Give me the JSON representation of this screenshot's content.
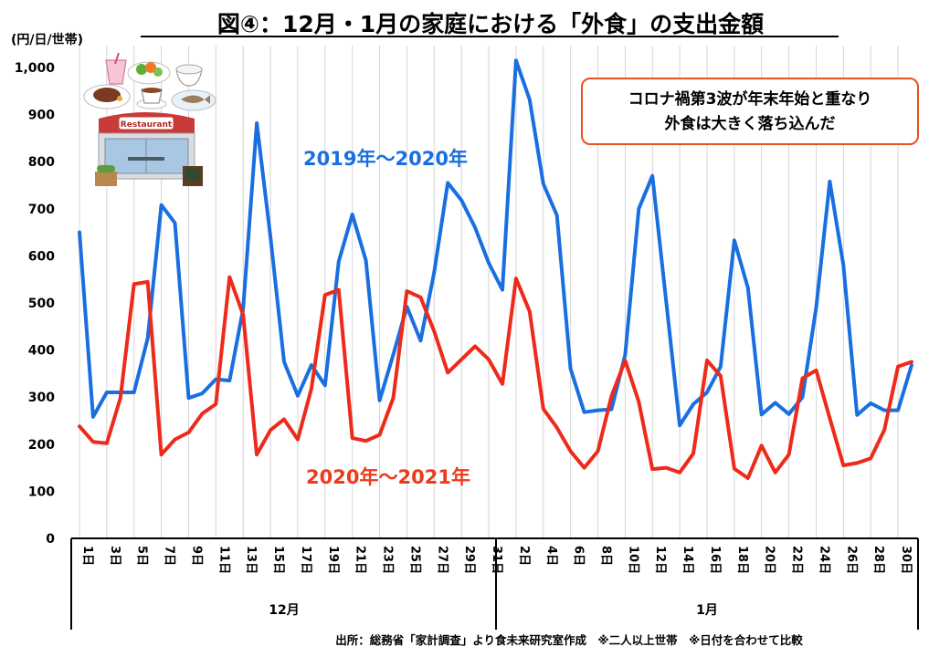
{
  "chart_data": {
    "type": "line",
    "title": "図④：12月・1月の家庭における「外食」の支出金額",
    "ylabel": "(円/日/世帯)",
    "ylim": [
      0,
      1000
    ],
    "yticks": [
      0,
      100,
      200,
      300,
      400,
      500,
      600,
      700,
      800,
      900,
      1000
    ],
    "ytick_labels": [
      "0",
      "100",
      "200",
      "300",
      "400",
      "500",
      "600",
      "700",
      "800",
      "900",
      "1,000"
    ],
    "x": [
      "12/1",
      "12/2",
      "12/3",
      "12/4",
      "12/5",
      "12/6",
      "12/7",
      "12/8",
      "12/9",
      "12/10",
      "12/11",
      "12/12",
      "12/13",
      "12/14",
      "12/15",
      "12/16",
      "12/17",
      "12/18",
      "12/19",
      "12/20",
      "12/21",
      "12/22",
      "12/23",
      "12/24",
      "12/25",
      "12/26",
      "12/27",
      "12/28",
      "12/29",
      "12/30",
      "12/31",
      "1/1",
      "1/2",
      "1/3",
      "1/4",
      "1/5",
      "1/6",
      "1/7",
      "1/8",
      "1/9",
      "1/10",
      "1/11",
      "1/12",
      "1/13",
      "1/14",
      "1/15",
      "1/16",
      "1/17",
      "1/18",
      "1/19",
      "1/20",
      "1/21",
      "1/22",
      "1/23",
      "1/24",
      "1/25",
      "1/26",
      "1/27",
      "1/28",
      "1/29",
      "1/30",
      "1/31"
    ],
    "xtick_labels": [
      "1日",
      "3日",
      "5日",
      "7日",
      "9日",
      "11日",
      "13日",
      "15日",
      "17日",
      "19日",
      "21日",
      "23日",
      "25日",
      "27日",
      "29日",
      "31日",
      "2日",
      "4日",
      "6日",
      "8日",
      "10日",
      "12日",
      "14日",
      "16日",
      "18日",
      "20日",
      "22日",
      "24日",
      "26日",
      "28日",
      "30日"
    ],
    "xtick_index": [
      0,
      2,
      4,
      6,
      8,
      10,
      12,
      14,
      16,
      18,
      20,
      22,
      24,
      26,
      28,
      30,
      32,
      34,
      36,
      38,
      40,
      42,
      44,
      46,
      48,
      50,
      52,
      54,
      56,
      58,
      60
    ],
    "months": [
      {
        "label": "12月",
        "start": 0,
        "end": 30
      },
      {
        "label": "1月",
        "start": 31,
        "end": 61
      }
    ],
    "series": [
      {
        "name": "2019年〜2020年",
        "color": "#1a6fe0",
        "values": [
          650,
          258,
          310,
          310,
          310,
          425,
          708,
          670,
          298,
          308,
          338,
          335,
          488,
          882,
          640,
          375,
          303,
          368,
          325,
          588,
          688,
          590,
          293,
          390,
          492,
          420,
          565,
          755,
          718,
          660,
          585,
          528,
          1015,
          932,
          753,
          686,
          360,
          268,
          272,
          274,
          390,
          700,
          770,
          505,
          240,
          285,
          310,
          365,
          633,
          532,
          263,
          288,
          264,
          300,
          490,
          758,
          580,
          262,
          287,
          272,
          272,
          368
        ]
      },
      {
        "name": "2020年〜2021年",
        "color": "#ee2a1a",
        "values": [
          238,
          205,
          202,
          298,
          540,
          545,
          178,
          210,
          225,
          265,
          285,
          555,
          475,
          178,
          230,
          253,
          210,
          318,
          517,
          528,
          213,
          207,
          220,
          298,
          525,
          512,
          440,
          352,
          380,
          408,
          380,
          328,
          552,
          482,
          275,
          235,
          185,
          150,
          185,
          302,
          378,
          290,
          147,
          150,
          140,
          180,
          378,
          345,
          148,
          128,
          197,
          140,
          178,
          340,
          357,
          255,
          155,
          160,
          170,
          230,
          365,
          375
        ]
      }
    ],
    "series_labels": [
      "2019年〜2020年",
      "2020年〜2021年"
    ],
    "annotation": [
      "コロナ禍第3波が年末年始と重なり",
      "外食は大きく落ち込んだ"
    ],
    "source": "出所：総務省「家計調査」より食未来研究室作成　※二人以上世帯　※日付を合わせて比較",
    "restaurant_sign": "Restaurant"
  }
}
